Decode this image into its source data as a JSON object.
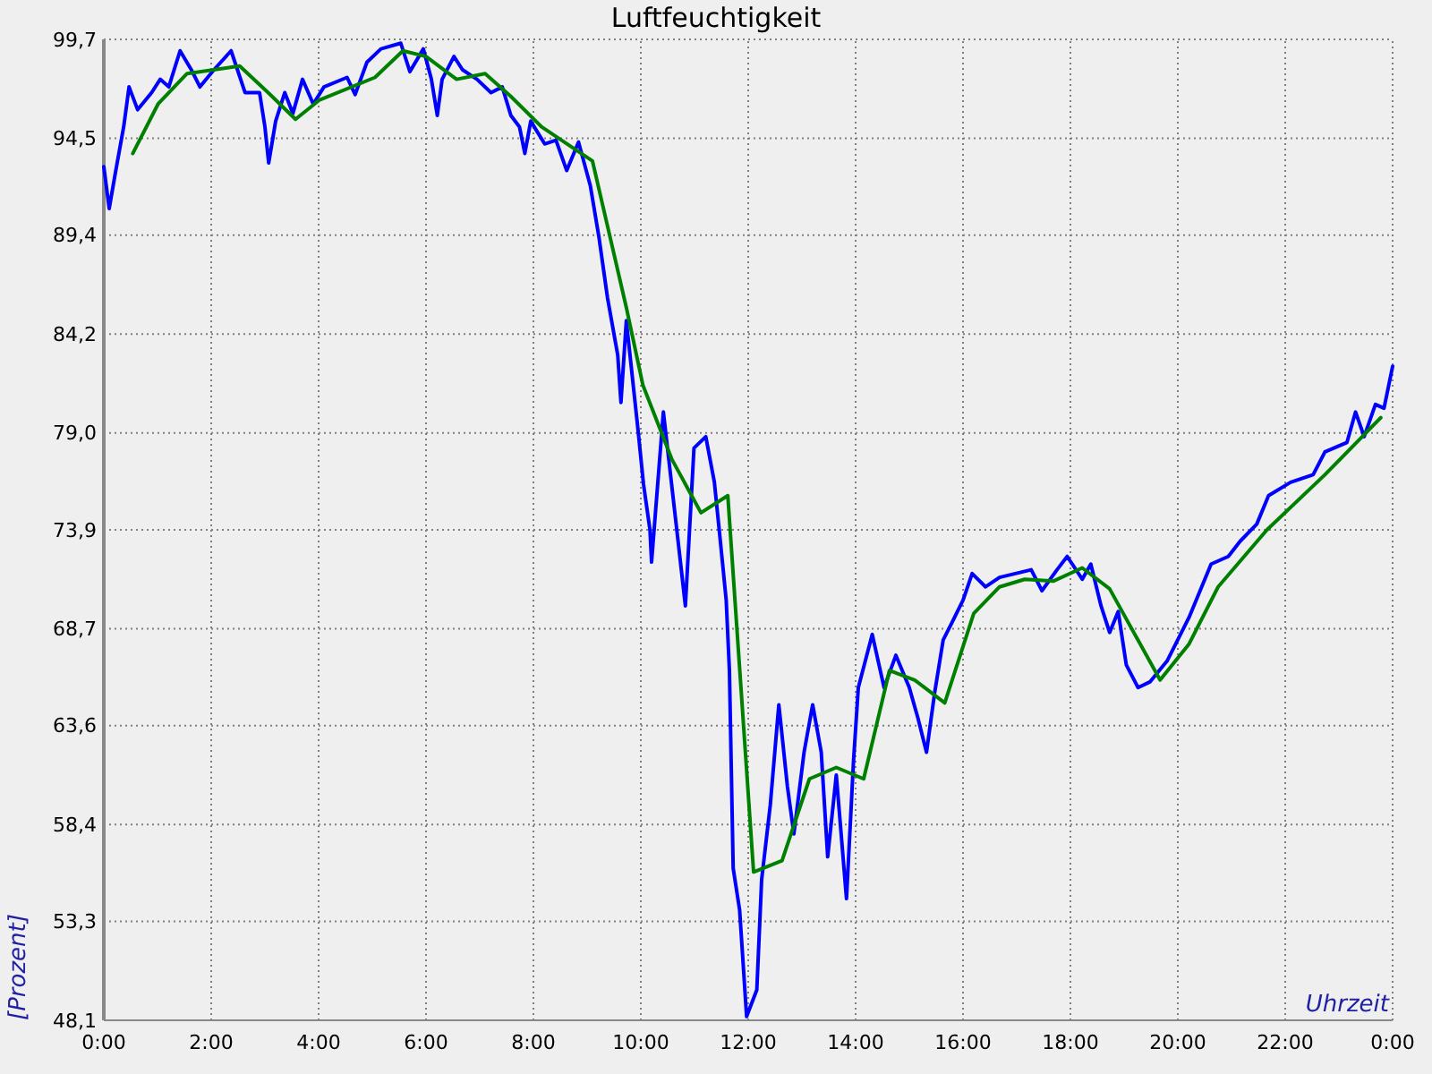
{
  "chart_data": {
    "type": "line",
    "title": "Luftfeuchtigkeit",
    "xlabel": "Uhrzeit",
    "ylabel": "[Prozent]",
    "xlim": [
      0,
      24
    ],
    "xticks": [
      {
        "value": 0,
        "label": "0:00"
      },
      {
        "value": 2,
        "label": "2:00"
      },
      {
        "value": 4,
        "label": "4:00"
      },
      {
        "value": 6,
        "label": "6:00"
      },
      {
        "value": 8,
        "label": "8:00"
      },
      {
        "value": 10,
        "label": "10:00"
      },
      {
        "value": 12,
        "label": "12:00"
      },
      {
        "value": 14,
        "label": "14:00"
      },
      {
        "value": 16,
        "label": "16:00"
      },
      {
        "value": 18,
        "label": "18:00"
      },
      {
        "value": 20,
        "label": "20:00"
      },
      {
        "value": 22,
        "label": "22:00"
      },
      {
        "value": 24,
        "label": "0:00"
      }
    ],
    "ylim": [
      48.1,
      99.7
    ],
    "yticks": [
      {
        "value": 48.1,
        "label": "48,1"
      },
      {
        "value": 53.3,
        "label": "53,3"
      },
      {
        "value": 58.4,
        "label": "58,4"
      },
      {
        "value": 63.6,
        "label": "63,6"
      },
      {
        "value": 68.7,
        "label": "68,7"
      },
      {
        "value": 73.9,
        "label": "73,9"
      },
      {
        "value": 79.0,
        "label": "79,0"
      },
      {
        "value": 84.2,
        "label": "84,2"
      },
      {
        "value": 89.4,
        "label": "89,4"
      },
      {
        "value": 94.5,
        "label": "94,5"
      },
      {
        "value": 99.7,
        "label": "99,7"
      }
    ],
    "grid": true,
    "series": [
      {
        "color": "#0000ff",
        "x": [
          0,
          0.1,
          0.21,
          0.37,
          0.47,
          0.63,
          0.89,
          1.05,
          1.21,
          1.42,
          1.63,
          1.79,
          2.05,
          2.37,
          2.63,
          2.9,
          3.0,
          3.07,
          3.2,
          3.37,
          3.52,
          3.7,
          3.9,
          4.1,
          4.53,
          4.68,
          4.9,
          5.16,
          5.53,
          5.7,
          5.95,
          6.1,
          6.21,
          6.3,
          6.52,
          6.68,
          6.95,
          7.21,
          7.42,
          7.58,
          7.74,
          7.84,
          7.95,
          8.21,
          8.42,
          8.62,
          8.84,
          9.06,
          9.22,
          9.38,
          9.57,
          9.63,
          9.73,
          9.95,
          10.05,
          10.17,
          10.2,
          10.42,
          10.67,
          10.83,
          10.99,
          11.21,
          11.37,
          11.46,
          11.59,
          11.65,
          11.72,
          11.84,
          11.97,
          12.16,
          12.25,
          12.41,
          12.57,
          12.73,
          12.85,
          13.04,
          13.2,
          13.36,
          13.48,
          13.64,
          13.83,
          13.96,
          14.05,
          14.31,
          14.53,
          14.75,
          15.0,
          15.16,
          15.32,
          15.47,
          15.63,
          15.79,
          16.0,
          16.17,
          16.42,
          16.68,
          17.27,
          17.47,
          17.75,
          17.94,
          18.22,
          18.38,
          18.57,
          18.73,
          18.89,
          19.04,
          19.26,
          19.48,
          19.8,
          20.21,
          20.62,
          20.94,
          21.16,
          21.47,
          21.69,
          22.1,
          22.52,
          22.74,
          23.15,
          23.31,
          23.47,
          23.68,
          23.84,
          24.0
        ],
        "values": [
          93.0,
          90.8,
          92.6,
          95.1,
          97.2,
          96.0,
          96.9,
          97.6,
          97.2,
          99.1,
          98.1,
          97.2,
          98.1,
          99.1,
          96.9,
          96.9,
          95.1,
          93.2,
          95.4,
          96.9,
          95.8,
          97.6,
          96.3,
          97.2,
          97.7,
          96.8,
          98.5,
          99.2,
          99.5,
          98.0,
          99.2,
          97.6,
          95.7,
          97.6,
          98.8,
          98.1,
          97.6,
          96.9,
          97.2,
          95.7,
          95.1,
          93.7,
          95.4,
          94.2,
          94.4,
          92.8,
          94.3,
          92.0,
          89.3,
          86.1,
          83.1,
          80.6,
          84.9,
          79.1,
          76.3,
          73.9,
          72.2,
          80.1,
          73.9,
          69.9,
          78.2,
          78.8,
          76.4,
          73.9,
          70.2,
          66.5,
          56.1,
          53.9,
          48.3,
          49.7,
          55.5,
          59.4,
          64.7,
          60.4,
          57.9,
          62.2,
          64.7,
          62.2,
          56.7,
          61.0,
          54.5,
          61.7,
          65.6,
          68.4,
          65.6,
          67.3,
          65.6,
          64.0,
          62.2,
          65.3,
          68.1,
          69.0,
          70.2,
          71.6,
          70.9,
          71.4,
          71.8,
          70.7,
          71.8,
          72.5,
          71.3,
          72.1,
          69.9,
          68.5,
          69.6,
          66.8,
          65.6,
          65.9,
          67.0,
          69.3,
          72.1,
          72.5,
          73.3,
          74.2,
          75.7,
          76.4,
          76.8,
          78.0,
          78.5,
          80.1,
          78.8,
          80.5,
          80.3,
          82.5
        ]
      },
      {
        "color": "#008000",
        "x": [
          0.54,
          1.01,
          1.55,
          2.53,
          3.06,
          3.57,
          4.01,
          5.05,
          5.57,
          6.0,
          6.57,
          7.1,
          7.58,
          8.15,
          9.1,
          9.73,
          10.04,
          10.58,
          11.12,
          11.62,
          12.1,
          12.63,
          13.14,
          13.64,
          14.15,
          14.63,
          15.1,
          15.66,
          16.2,
          16.68,
          17.15,
          17.68,
          18.22,
          18.73,
          19.67,
          20.21,
          20.75,
          21.66,
          22.74,
          23.78
        ],
        "values": [
          93.7,
          96.3,
          97.9,
          98.3,
          96.9,
          95.5,
          96.5,
          97.7,
          99.1,
          98.8,
          97.6,
          97.9,
          96.7,
          95.1,
          93.3,
          85.6,
          81.5,
          77.6,
          74.8,
          75.7,
          55.9,
          56.5,
          60.8,
          61.4,
          60.8,
          66.5,
          66.0,
          64.8,
          69.5,
          70.9,
          71.3,
          71.2,
          71.9,
          70.8,
          66.0,
          67.9,
          70.9,
          73.9,
          76.8,
          79.8
        ]
      }
    ]
  }
}
